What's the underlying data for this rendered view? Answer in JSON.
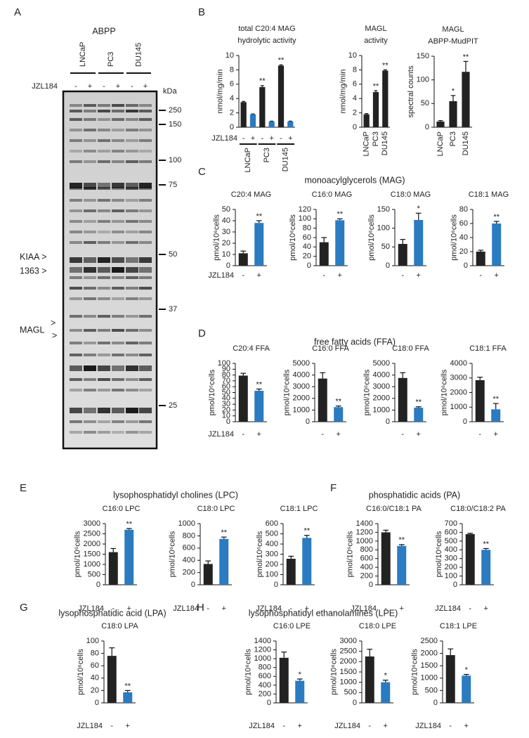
{
  "panels": [
    {
      "letter": "A"
    },
    {
      "letter": "B"
    },
    {
      "letter": "C",
      "title": "monoacylglycerols (MAG)"
    },
    {
      "letter": "D",
      "title": "free fatty acids (FFA)"
    },
    {
      "letter": "E",
      "title": "lysophosphatidyl cholines (LPC)"
    },
    {
      "letter": "F",
      "title": "phosphatidic acids (PA)"
    },
    {
      "letter": "G",
      "title": "lysophosphatidic acid (LPA)"
    },
    {
      "letter": "H",
      "title": "lysophosphatidyl ethanolamines (LPE)"
    }
  ],
  "gel": {
    "title": "ABPP",
    "cell_lines": [
      "LNCaP",
      "PC3",
      "DU145"
    ],
    "treatment_label": "JZL184",
    "lanes": [
      "-",
      "+",
      "-",
      "+",
      "-",
      "+"
    ],
    "unit": "kDa",
    "markers": [
      250,
      150,
      100,
      75,
      50,
      37,
      25
    ],
    "arrow_labels": [
      "KIAA >",
      "1363 >",
      "MAGL",
      ">",
      ">"
    ]
  },
  "chart_data": [
    {
      "type": "bar",
      "title": [
        "total C20:4 MAG",
        "hydrolytic activity"
      ],
      "ylabel": "nmol/mg/min",
      "xlabel": "JZL184",
      "categories": [
        "-",
        "+",
        "-",
        "+",
        "-",
        "+"
      ],
      "groups": [
        "LNCaP",
        "PC3",
        "DU145"
      ],
      "values": [
        3.5,
        1.8,
        5.6,
        0.8,
        8.6,
        0.8
      ],
      "errors": [
        0.1,
        0.05,
        0.2,
        0.05,
        0.1,
        0.05
      ],
      "colors": [
        "#222222",
        "#2b7bc0",
        "#222222",
        "#2b7bc0",
        "#222222",
        "#2b7bc0"
      ],
      "annotations": [
        null,
        null,
        "**",
        null,
        "**",
        null
      ],
      "ylim": [
        0,
        10
      ],
      "yticks": [
        0,
        2,
        4,
        6,
        8,
        10
      ]
    },
    {
      "type": "bar",
      "title": [
        "MAGL",
        "activity"
      ],
      "ylabel": "nmol/mg/min",
      "categories": [
        "LNCaP",
        "PC3",
        "DU145"
      ],
      "values": [
        1.8,
        4.9,
        7.9
      ],
      "errors": [
        0.1,
        0.2,
        0.1
      ],
      "colors": [
        "#222222",
        "#222222",
        "#222222"
      ],
      "annotations": [
        null,
        "**",
        "**"
      ],
      "ylim": [
        0,
        10
      ],
      "yticks": [
        0,
        2,
        4,
        6,
        8,
        10
      ]
    },
    {
      "type": "bar",
      "title": [
        "MAGL",
        "ABPP-MudPIT"
      ],
      "ylabel": "spectral counts",
      "categories": [
        "LNCaP",
        "PC3",
        "DU145"
      ],
      "values": [
        12,
        55,
        117
      ],
      "errors": [
        2,
        12,
        22
      ],
      "colors": [
        "#222222",
        "#222222",
        "#222222"
      ],
      "annotations": [
        null,
        "*",
        "**"
      ],
      "ylim": [
        0,
        150
      ],
      "yticks": [
        0,
        50,
        100,
        150
      ]
    },
    {
      "type": "bar",
      "title": [
        "C20:4 MAG"
      ],
      "ylabel": "pmol/10⁶cells",
      "xlabel": "JZL184",
      "categories": [
        "-",
        "+"
      ],
      "values": [
        11,
        38
      ],
      "errors": [
        2,
        2
      ],
      "colors": [
        "#222222",
        "#2b7bc0"
      ],
      "annotations": [
        null,
        "**"
      ],
      "ylim": [
        0,
        50
      ],
      "yticks": [
        0,
        10,
        20,
        30,
        40,
        50
      ]
    },
    {
      "type": "bar",
      "title": [
        "C16:0 MAG"
      ],
      "ylabel": "pmol/10⁶cells",
      "categories": [
        "-",
        "+"
      ],
      "values": [
        50,
        97
      ],
      "errors": [
        10,
        3
      ],
      "colors": [
        "#222222",
        "#2b7bc0"
      ],
      "annotations": [
        null,
        "**"
      ],
      "ylim": [
        0,
        120
      ],
      "yticks": [
        0,
        20,
        40,
        60,
        80,
        100,
        120
      ]
    },
    {
      "type": "bar",
      "title": [
        "C18:0 MAG"
      ],
      "ylabel": "pmol/10⁶cells",
      "categories": [
        "-",
        "+"
      ],
      "values": [
        58,
        122
      ],
      "errors": [
        12,
        18
      ],
      "colors": [
        "#222222",
        "#2b7bc0"
      ],
      "annotations": [
        null,
        "*"
      ],
      "ylim": [
        0,
        150
      ],
      "yticks": [
        0,
        50,
        100,
        150
      ]
    },
    {
      "type": "bar",
      "title": [
        "C18:1 MAG"
      ],
      "ylabel": "pmol/10⁶cells",
      "categories": [
        "-",
        "+"
      ],
      "values": [
        20,
        60
      ],
      "errors": [
        2,
        3
      ],
      "colors": [
        "#222222",
        "#2b7bc0"
      ],
      "annotations": [
        null,
        "**"
      ],
      "ylim": [
        0,
        80
      ],
      "yticks": [
        0,
        20,
        40,
        60,
        80
      ]
    },
    {
      "type": "bar",
      "title": [
        "C20:4 FFA"
      ],
      "ylabel": "pmol/10⁶cells",
      "xlabel": "JZL184",
      "categories": [
        "-",
        "+"
      ],
      "values": [
        79,
        53
      ],
      "errors": [
        4,
        3
      ],
      "colors": [
        "#222222",
        "#2b7bc0"
      ],
      "annotations": [
        null,
        "**"
      ],
      "ylim": [
        0,
        100
      ],
      "yticks": [
        0,
        10,
        20,
        30,
        40,
        50,
        60,
        70,
        80,
        90,
        100
      ]
    },
    {
      "type": "bar",
      "title": [
        "C16:0 FFA"
      ],
      "ylabel": "pmol/10⁶cells",
      "categories": [
        "-",
        "+"
      ],
      "values": [
        3700,
        1250
      ],
      "errors": [
        500,
        100
      ],
      "colors": [
        "#222222",
        "#2b7bc0"
      ],
      "annotations": [
        null,
        "**"
      ],
      "ylim": [
        0,
        5000
      ],
      "yticks": [
        0,
        1000,
        2000,
        3000,
        4000,
        5000
      ]
    },
    {
      "type": "bar",
      "title": [
        "C18:0 FFA"
      ],
      "ylabel": "pmol/10⁶cells",
      "categories": [
        "-",
        "+"
      ],
      "values": [
        3750,
        1200
      ],
      "errors": [
        450,
        80
      ],
      "colors": [
        "#222222",
        "#2b7bc0"
      ],
      "annotations": [
        null,
        "**"
      ],
      "ylim": [
        0,
        5000
      ],
      "yticks": [
        0,
        1000,
        2000,
        3000,
        4000,
        5000
      ]
    },
    {
      "type": "bar",
      "title": [
        "C18:1 FFA"
      ],
      "ylabel": "pmol/10⁶cells",
      "categories": [
        "-",
        "+"
      ],
      "values": [
        2850,
        850
      ],
      "errors": [
        200,
        400
      ],
      "colors": [
        "#222222",
        "#2b7bc0"
      ],
      "annotations": [
        null,
        "**"
      ],
      "ylim": [
        0,
        4000
      ],
      "yticks": [
        0,
        1000,
        2000,
        3000,
        4000
      ]
    },
    {
      "type": "bar",
      "title": [
        "C16:0 LPC"
      ],
      "ylabel": "pmol/10⁶cells",
      "xlabel": "JZL184",
      "categories": [
        "-",
        "+"
      ],
      "values": [
        1600,
        2700
      ],
      "errors": [
        180,
        60
      ],
      "colors": [
        "#222222",
        "#2b7bc0"
      ],
      "annotations": [
        null,
        "**"
      ],
      "ylim": [
        0,
        3000
      ],
      "yticks": [
        0,
        500,
        1000,
        1500,
        2000,
        2500,
        3000
      ]
    },
    {
      "type": "bar",
      "title": [
        "C18:0 LPC"
      ],
      "ylabel": "pmol/10⁶cells",
      "xlabel": "JZL184",
      "categories": [
        "-",
        "+"
      ],
      "values": [
        340,
        750
      ],
      "errors": [
        50,
        30
      ],
      "colors": [
        "#222222",
        "#2b7bc0"
      ],
      "annotations": [
        null,
        "**"
      ],
      "ylim": [
        0,
        1000
      ],
      "yticks": [
        0,
        200,
        400,
        600,
        800,
        1000
      ]
    },
    {
      "type": "bar",
      "title": [
        "C18:1 LPC"
      ],
      "ylabel": "pmol/10⁶cells",
      "xlabel": "JZL184",
      "categories": [
        "-",
        "+"
      ],
      "values": [
        255,
        460
      ],
      "errors": [
        25,
        25
      ],
      "colors": [
        "#222222",
        "#2b7bc0"
      ],
      "annotations": [
        null,
        "**"
      ],
      "ylim": [
        0,
        600
      ],
      "yticks": [
        0,
        100,
        200,
        300,
        400,
        500,
        600
      ]
    },
    {
      "type": "bar",
      "title": [
        "C16:0/C18:1 PA"
      ],
      "ylabel": "pmol/10⁶cells",
      "xlabel": "JZL184",
      "categories": [
        "-",
        "+"
      ],
      "values": [
        1200,
        890
      ],
      "errors": [
        50,
        30
      ],
      "colors": [
        "#222222",
        "#2b7bc0"
      ],
      "annotations": [
        null,
        "**"
      ],
      "ylim": [
        0,
        1400
      ],
      "yticks": [
        0,
        200,
        400,
        600,
        800,
        1000,
        1200,
        1400
      ]
    },
    {
      "type": "bar",
      "title": [
        "C18:0/C18:2 PA"
      ],
      "ylabel": "pmol/10⁶cells",
      "xlabel": "JZL184",
      "categories": [
        "-",
        "+"
      ],
      "values": [
        580,
        400
      ],
      "errors": [
        10,
        15
      ],
      "colors": [
        "#222222",
        "#2b7bc0"
      ],
      "annotations": [
        null,
        "**"
      ],
      "ylim": [
        0,
        700
      ],
      "yticks": [
        0,
        100,
        200,
        300,
        400,
        500,
        600,
        700
      ]
    },
    {
      "type": "bar",
      "title": [
        "C18:0 LPA"
      ],
      "ylabel": "pmol/10⁶cells",
      "xlabel": "JZL184",
      "categories": [
        "-",
        "+"
      ],
      "values": [
        76,
        17
      ],
      "errors": [
        13,
        3
      ],
      "colors": [
        "#222222",
        "#2b7bc0"
      ],
      "annotations": [
        null,
        "**"
      ],
      "ylim": [
        0,
        100
      ],
      "yticks": [
        0,
        20,
        40,
        60,
        80,
        100
      ]
    },
    {
      "type": "bar",
      "title": [
        "C16:0 LPE"
      ],
      "ylabel": "pmol/10⁶cells",
      "xlabel": "JZL184",
      "categories": [
        "-",
        "+"
      ],
      "values": [
        1020,
        500
      ],
      "errors": [
        130,
        40
      ],
      "colors": [
        "#222222",
        "#2b7bc0"
      ],
      "annotations": [
        null,
        "*"
      ],
      "ylim": [
        0,
        1400
      ],
      "yticks": [
        0,
        200,
        400,
        600,
        800,
        1000,
        1200,
        1400
      ]
    },
    {
      "type": "bar",
      "title": [
        "C18:0 LPE"
      ],
      "ylabel": "pmol/10⁶cells",
      "xlabel": "JZL184",
      "categories": [
        "-",
        "+"
      ],
      "values": [
        2250,
        1000
      ],
      "errors": [
        350,
        100
      ],
      "colors": [
        "#222222",
        "#2b7bc0"
      ],
      "annotations": [
        null,
        "*"
      ],
      "ylim": [
        0,
        3000
      ],
      "yticks": [
        0,
        500,
        1000,
        1500,
        2000,
        2500,
        3000
      ]
    },
    {
      "type": "bar",
      "title": [
        "C18:1 LPE"
      ],
      "ylabel": "pmol/10⁶cells",
      "xlabel": "JZL184",
      "categories": [
        "-",
        "+"
      ],
      "values": [
        1930,
        1100
      ],
      "errors": [
        250,
        50
      ],
      "colors": [
        "#222222",
        "#2b7bc0"
      ],
      "annotations": [
        null,
        "*"
      ],
      "ylim": [
        0,
        2500
      ],
      "yticks": [
        0,
        500,
        1000,
        1500,
        2000,
        2500
      ]
    }
  ]
}
